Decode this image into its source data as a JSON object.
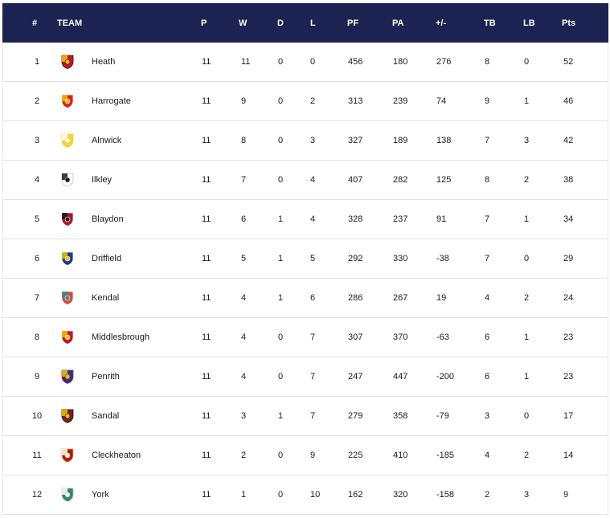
{
  "headers": {
    "rank": "#",
    "team": "TEAM",
    "p": "P",
    "w": "W",
    "d": "D",
    "l": "L",
    "pf": "PF",
    "pa": "PA",
    "diff": "+/-",
    "tb": "TB",
    "lb": "LB",
    "pts": "Pts"
  },
  "rows": [
    {
      "rank": "1",
      "team": "Heath",
      "p": "11",
      "w": "11",
      "d": "0",
      "l": "0",
      "pf": "456",
      "pa": "180",
      "diff": "276",
      "tb": "8",
      "lb": "0",
      "pts": "52",
      "crest": "heath-crest-icon",
      "colors": [
        "#c8102e",
        "#f2c200",
        "#1a1a1a"
      ]
    },
    {
      "rank": "2",
      "team": "Harrogate",
      "p": "11",
      "w": "9",
      "d": "0",
      "l": "2",
      "pf": "313",
      "pa": "239",
      "diff": "74",
      "tb": "9",
      "lb": "1",
      "pts": "46",
      "crest": "harrogate-crest-icon",
      "colors": [
        "#e02020",
        "#f2c200",
        "#ffffff"
      ]
    },
    {
      "rank": "3",
      "team": "Alnwick",
      "p": "11",
      "w": "8",
      "d": "0",
      "l": "3",
      "pf": "327",
      "pa": "189",
      "diff": "138",
      "tb": "7",
      "lb": "3",
      "pts": "42",
      "crest": "alnwick-crest-icon",
      "colors": [
        "#f5d23a",
        "#ffffff",
        "#f5d23a"
      ]
    },
    {
      "rank": "4",
      "team": "Ilkley",
      "p": "11",
      "w": "7",
      "d": "0",
      "l": "4",
      "pf": "407",
      "pa": "282",
      "diff": "125",
      "tb": "8",
      "lb": "2",
      "pts": "38",
      "crest": "ilkley-crest-icon",
      "colors": [
        "#ffffff",
        "#1a1a1a",
        "#c0c0c0"
      ]
    },
    {
      "rank": "5",
      "team": "Blaydon",
      "p": "11",
      "w": "6",
      "d": "1",
      "l": "4",
      "pf": "328",
      "pa": "237",
      "diff": "91",
      "tb": "7",
      "lb": "1",
      "pts": "34",
      "crest": "blaydon-crest-icon",
      "colors": [
        "#b3122b",
        "#1a1a1a",
        "#ffffff"
      ]
    },
    {
      "rank": "6",
      "team": "Driffield",
      "p": "11",
      "w": "5",
      "d": "1",
      "l": "5",
      "pf": "292",
      "pa": "330",
      "diff": "-38",
      "tb": "7",
      "lb": "0",
      "pts": "29",
      "crest": "driffield-crest-icon",
      "colors": [
        "#1d3a8a",
        "#f2c200",
        "#ffffff"
      ]
    },
    {
      "rank": "7",
      "team": "Kendal",
      "p": "11",
      "w": "4",
      "d": "1",
      "l": "6",
      "pf": "286",
      "pa": "267",
      "diff": "19",
      "tb": "4",
      "lb": "2",
      "pts": "24",
      "crest": "kendal-crest-icon",
      "colors": [
        "#d24a3a",
        "#3c8c8c",
        "#ffffff"
      ]
    },
    {
      "rank": "8",
      "team": "Middlesbrough",
      "p": "11",
      "w": "4",
      "d": "0",
      "l": "7",
      "pf": "307",
      "pa": "370",
      "diff": "-63",
      "tb": "6",
      "lb": "1",
      "pts": "23",
      "crest": "middlesbrough-crest-icon",
      "colors": [
        "#c8102e",
        "#f2c200",
        "#ffffff"
      ]
    },
    {
      "rank": "9",
      "team": "Penrith",
      "p": "11",
      "w": "4",
      "d": "0",
      "l": "7",
      "pf": "247",
      "pa": "447",
      "diff": "-200",
      "tb": "6",
      "lb": "1",
      "pts": "23",
      "crest": "penrith-crest-icon",
      "colors": [
        "#1d3a8a",
        "#f2c200",
        "#c8102e"
      ]
    },
    {
      "rank": "10",
      "team": "Sandal",
      "p": "11",
      "w": "3",
      "d": "1",
      "l": "7",
      "pf": "279",
      "pa": "358",
      "diff": "-79",
      "tb": "3",
      "lb": "0",
      "pts": "17",
      "crest": "sandal-crest-icon",
      "colors": [
        "#7a1f1f",
        "#f2c200",
        "#1a1a1a"
      ]
    },
    {
      "rank": "11",
      "team": "Cleckheaton",
      "p": "11",
      "w": "2",
      "d": "0",
      "l": "9",
      "pf": "225",
      "pa": "410",
      "diff": "-185",
      "tb": "4",
      "lb": "2",
      "pts": "14",
      "crest": "cleckheaton-crest-icon",
      "colors": [
        "#b3122b",
        "#ffffff",
        "#f2c200"
      ]
    },
    {
      "rank": "12",
      "team": "York",
      "p": "11",
      "w": "1",
      "d": "0",
      "l": "10",
      "pf": "162",
      "pa": "320",
      "diff": "-158",
      "tb": "2",
      "lb": "3",
      "pts": "9",
      "crest": "york-crest-icon",
      "colors": [
        "#2e8b57",
        "#ffffff",
        "#c0c0c0"
      ]
    }
  ]
}
